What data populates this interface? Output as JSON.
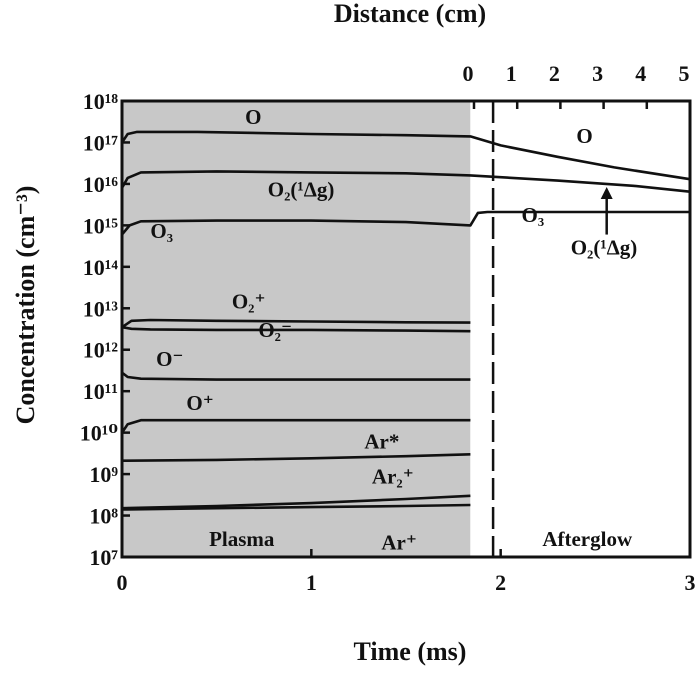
{
  "chart_data": {
    "type": "line",
    "xlabel": "Time (ms)",
    "ylabel": "Concentration (cm⁻³)",
    "x2label": "Distance (cm)",
    "xlim": [
      0,
      3
    ],
    "ylim_exponent": [
      7,
      18
    ],
    "y_scale": "log",
    "x_ticks": [
      "0",
      "1",
      "2",
      "3"
    ],
    "x2_ticks": [
      "0",
      "1",
      "2",
      "3",
      "4",
      "5"
    ],
    "y_tick_labels": [
      "10⁷",
      "10⁸",
      "10⁹",
      "10¹⁰",
      "10¹¹",
      "10¹²",
      "10¹³",
      "10¹⁴",
      "10¹⁵",
      "10¹⁶",
      "10¹⁷",
      "10¹⁸"
    ],
    "regions": [
      {
        "label": "Plasma",
        "x_range": [
          0,
          1.84
        ],
        "color": "#c8c8c8"
      },
      {
        "label": "Afterglow",
        "x_range": [
          1.84,
          3
        ],
        "color": "#ffffff"
      }
    ],
    "boundary_x": 1.96,
    "series": [
      {
        "name": "O",
        "label": "O",
        "x": [
          0,
          0.03,
          0.08,
          0.4,
          1.0,
          1.5,
          1.84,
          2.0,
          2.3,
          2.6,
          3.0
        ],
        "y": [
          1e+17,
          1.6e+17,
          1.8e+17,
          1.8e+17,
          1.6e+17,
          1.5e+17,
          1.4e+17,
          8.5e+16,
          4.5e+16,
          2.5e+16,
          1.3e+16
        ]
      },
      {
        "name": "O2(1Δg)",
        "label": "O₂(¹Δg)",
        "x": [
          0,
          0.03,
          0.1,
          0.5,
          1.0,
          1.5,
          1.84,
          2.3,
          2.7,
          3.0
        ],
        "y": [
          8000000000000000.0,
          1.4e+16,
          1.9e+16,
          2e+16,
          1.9e+16,
          1.8e+16,
          1.6e+16,
          1.2e+16,
          9000000000000000.0,
          6500000000000000.0
        ]
      },
      {
        "name": "O3",
        "label": "O₃",
        "x": [
          0,
          0.04,
          0.1,
          0.5,
          1.0,
          1.5,
          1.84,
          1.88,
          1.93,
          2.2,
          3.0
        ],
        "y": [
          600000000000000.0,
          1000000000000000.0,
          1250000000000000.0,
          1300000000000000.0,
          1300000000000000.0,
          1200000000000000.0,
          1000000000000000.0,
          2000000000000000.0,
          2100000000000000.0,
          2100000000000000.0,
          2100000000000000.0
        ]
      },
      {
        "name": "O2+",
        "label": "O₂⁺",
        "x": [
          0,
          0.05,
          0.15,
          0.5,
          1.0,
          1.5,
          1.84
        ],
        "y": [
          3500000000000.0,
          5000000000000.0,
          5200000000000.0,
          5000000000000.0,
          4800000000000.0,
          4600000000000.0,
          4500000000000.0
        ]
      },
      {
        "name": "O2-",
        "label": "O₂⁻",
        "x": [
          0,
          0.05,
          0.15,
          0.5,
          1.0,
          1.5,
          1.84
        ],
        "y": [
          3500000000000.0,
          3200000000000.0,
          3100000000000.0,
          3000000000000.0,
          3000000000000.0,
          2900000000000.0,
          2800000000000.0
        ]
      },
      {
        "name": "O-",
        "label": "O⁻",
        "x": [
          0,
          0.03,
          0.1,
          0.5,
          1.0,
          1.5,
          1.84
        ],
        "y": [
          280000000000.0,
          220000000000.0,
          200000000000.0,
          190000000000.0,
          190000000000.0,
          190000000000.0,
          190000000000.0
        ]
      },
      {
        "name": "O+",
        "label": "O⁺",
        "x": [
          0,
          0.03,
          0.1,
          0.5,
          1.0,
          1.5,
          1.84
        ],
        "y": [
          10000000000.0,
          16000000000.0,
          20000000000.0,
          20000000000.0,
          20000000000.0,
          20000000000.0,
          20000000000.0
        ]
      },
      {
        "name": "Ar*",
        "label": "Ar*",
        "x": [
          0,
          0.5,
          1.0,
          1.5,
          1.84
        ],
        "y": [
          2100000000.0,
          2200000000.0,
          2400000000.0,
          2700000000.0,
          3000000000.0
        ]
      },
      {
        "name": "Ar2+",
        "label": "Ar₂⁺",
        "x": [
          0,
          0.5,
          1.0,
          1.5,
          1.84
        ],
        "y": [
          150000000.0,
          170000000.0,
          200000000.0,
          250000000.0,
          300000000.0
        ]
      },
      {
        "name": "Ar+",
        "label": "Ar⁺",
        "x": [
          0,
          0.5,
          1.0,
          1.5,
          1.84
        ],
        "y": [
          140000000.0,
          150000000.0,
          160000000.0,
          170000000.0,
          180000000.0
        ]
      }
    ],
    "annotations": [
      {
        "text": "O₂(¹Δg)",
        "arrow_to_series": "O2(1Δg)",
        "arrow_x": 2.56
      }
    ]
  }
}
